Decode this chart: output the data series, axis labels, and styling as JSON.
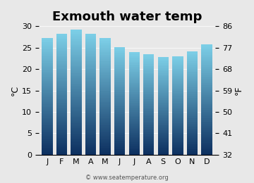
{
  "title": "Exmouth water temp",
  "months": [
    "J",
    "F",
    "M",
    "A",
    "M",
    "J",
    "J",
    "A",
    "S",
    "O",
    "N",
    "D"
  ],
  "temps_c": [
    27.3,
    28.3,
    29.2,
    28.3,
    27.2,
    25.1,
    23.9,
    23.5,
    22.9,
    23.0,
    24.2,
    25.7
  ],
  "ylim_c": [
    0,
    30
  ],
  "yticks_c": [
    0,
    5,
    10,
    15,
    20,
    25,
    30
  ],
  "ylim_f": [
    32,
    86
  ],
  "yticks_f": [
    32,
    41,
    50,
    59,
    68,
    77,
    86
  ],
  "ylabel_left": "°C",
  "ylabel_right": "°F",
  "bar_color_top": "#7dd0e8",
  "bar_color_bottom": "#0d3060",
  "bg_color": "#e8e8e8",
  "watermark": "© www.seatemperature.org",
  "title_fontsize": 13,
  "axis_fontsize": 9,
  "tick_fontsize": 8
}
